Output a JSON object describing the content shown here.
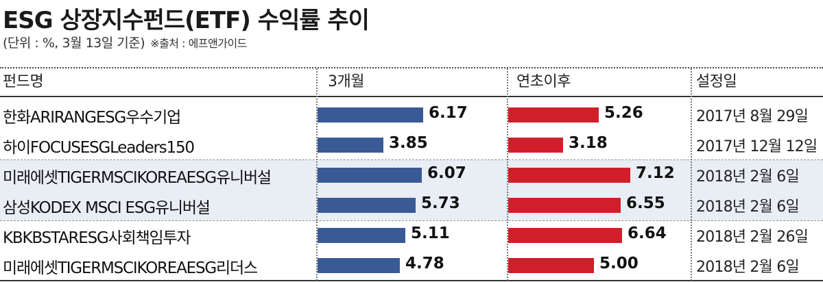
{
  "title": "ESG 상장지수펀드(ETF) 수익률 추이",
  "subtitle": "(단위 : %, 3월 13일 기준)",
  "source": "※출처 : 에프앤가이드",
  "columns": [
    "펀드명",
    "3개월",
    "연초이후",
    "설정일"
  ],
  "colors": {
    "blue": "#3a5a95",
    "red": "#d01f2b",
    "band": "#e9eef5"
  },
  "chart_data": {
    "type": "bar",
    "orientation": "horizontal",
    "title": "ESG 상장지수펀드(ETF) 수익률 추이",
    "categories": [
      "한화ARIRANGESG우수기업",
      "하이FOCUSESGLeaders150",
      "미래에셋TIGERMSCIKOREAESG유니버설",
      "삼성KODEX MSCI ESG유니버설",
      "KBKBSTARESG사회책임투자",
      "미래에셋TIGERMSCIKOREAESG리더스"
    ],
    "series": [
      {
        "name": "3개월",
        "values": [
          6.17,
          3.85,
          6.07,
          5.73,
          5.11,
          4.78
        ],
        "labels": [
          "6.17",
          "3.85",
          "6.07",
          "5.73",
          "5.11",
          "4.78"
        ]
      },
      {
        "name": "연초이후",
        "values": [
          5.26,
          3.18,
          7.12,
          6.55,
          6.64,
          5.0
        ],
        "labels": [
          "5.26",
          "3.18",
          "7.12",
          "6.55",
          "6.64",
          "5.00"
        ]
      }
    ],
    "dates": [
      "2017년 8월 29일",
      "2017년 12월 12일",
      "2018년 2월 6일",
      "2018년 2월 6일",
      "2018년 2월 26일",
      "2018년 2월 6일"
    ]
  }
}
